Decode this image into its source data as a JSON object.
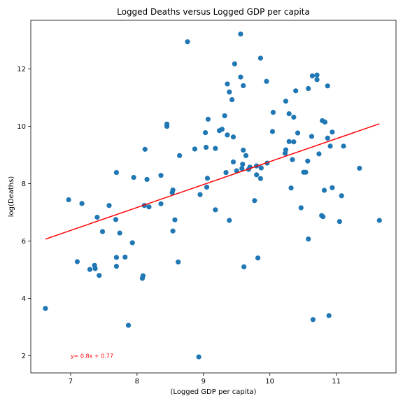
{
  "chart_data": {
    "type": "scatter",
    "title": "Logged Deaths versus Logged GDP per capita",
    "xlabel": "(Logged GDP per capita)",
    "ylabel": "log(Deaths)",
    "xlim": [
      6.4,
      11.9
    ],
    "ylim": [
      1.4,
      13.7
    ],
    "xticks": [
      "7",
      "8",
      "9",
      "10",
      "11"
    ],
    "yticks": [
      "2",
      "4",
      "6",
      "8",
      "10",
      "12"
    ],
    "grid": false,
    "colors": {
      "points": "#1f77b4",
      "fit": "#ff0000",
      "annotation": "#ff0000"
    },
    "fit": {
      "slope": 0.8,
      "intercept": 0.77,
      "x_range": [
        6.62,
        11.65
      ]
    },
    "annotation": {
      "text": "y= 0.8x + 0.77",
      "x": 7.0,
      "y": 2.0
    },
    "points": [
      [
        6.62,
        3.65
      ],
      [
        6.97,
        7.44
      ],
      [
        7.1,
        5.28
      ],
      [
        7.17,
        7.31
      ],
      [
        7.29,
        5.01
      ],
      [
        7.36,
        5.15
      ],
      [
        7.37,
        5.04
      ],
      [
        7.4,
        6.83
      ],
      [
        7.43,
        4.8
      ],
      [
        7.48,
        6.33
      ],
      [
        7.58,
        7.24
      ],
      [
        7.68,
        6.75
      ],
      [
        7.69,
        5.12
      ],
      [
        7.69,
        5.43
      ],
      [
        7.69,
        8.39
      ],
      [
        7.74,
        6.28
      ],
      [
        7.82,
        5.44
      ],
      [
        7.87,
        3.06
      ],
      [
        7.93,
        5.94
      ],
      [
        7.95,
        8.22
      ],
      [
        8.08,
        4.7
      ],
      [
        8.09,
        4.79
      ],
      [
        8.11,
        7.24
      ],
      [
        8.12,
        9.2
      ],
      [
        8.15,
        8.15
      ],
      [
        8.18,
        7.19
      ],
      [
        8.36,
        7.3
      ],
      [
        8.36,
        8.29
      ],
      [
        8.45,
        10.0
      ],
      [
        8.45,
        10.08
      ],
      [
        8.53,
        7.69
      ],
      [
        8.54,
        6.35
      ],
      [
        8.54,
        7.78
      ],
      [
        8.57,
        6.74
      ],
      [
        8.62,
        5.27
      ],
      [
        8.64,
        8.98
      ],
      [
        8.76,
        12.95
      ],
      [
        8.87,
        9.21
      ],
      [
        8.93,
        1.96
      ],
      [
        8.95,
        7.62
      ],
      [
        9.03,
        9.78
      ],
      [
        9.04,
        9.27
      ],
      [
        9.05,
        7.88
      ],
      [
        9.06,
        8.19
      ],
      [
        9.07,
        10.25
      ],
      [
        9.18,
        7.09
      ],
      [
        9.18,
        9.23
      ],
      [
        9.24,
        9.85
      ],
      [
        9.28,
        9.9
      ],
      [
        9.32,
        10.37
      ],
      [
        9.34,
        8.39
      ],
      [
        9.36,
        9.7
      ],
      [
        9.36,
        11.48
      ],
      [
        9.39,
        6.72
      ],
      [
        9.39,
        11.2
      ],
      [
        9.43,
        10.93
      ],
      [
        9.45,
        8.76
      ],
      [
        9.45,
        9.63
      ],
      [
        9.47,
        12.18
      ],
      [
        9.5,
        8.45
      ],
      [
        9.56,
        11.72
      ],
      [
        9.56,
        13.22
      ],
      [
        9.58,
        8.53
      ],
      [
        9.59,
        8.68
      ],
      [
        9.6,
        9.17
      ],
      [
        9.6,
        11.42
      ],
      [
        9.61,
        5.1
      ],
      [
        9.64,
        8.98
      ],
      [
        9.68,
        8.5
      ],
      [
        9.7,
        8.58
      ],
      [
        9.77,
        7.41
      ],
      [
        9.8,
        8.62
      ],
      [
        9.8,
        8.31
      ],
      [
        9.82,
        5.41
      ],
      [
        9.86,
        8.18
      ],
      [
        9.86,
        12.38
      ],
      [
        9.87,
        8.55
      ],
      [
        9.95,
        11.57
      ],
      [
        9.96,
        8.72
      ],
      [
        10.04,
        9.82
      ],
      [
        10.05,
        10.49
      ],
      [
        10.23,
        9.06
      ],
      [
        10.24,
        9.18
      ],
      [
        10.24,
        10.88
      ],
      [
        10.29,
        9.47
      ],
      [
        10.29,
        10.44
      ],
      [
        10.32,
        7.85
      ],
      [
        10.34,
        8.84
      ],
      [
        10.36,
        9.46
      ],
      [
        10.36,
        10.32
      ],
      [
        10.39,
        11.24
      ],
      [
        10.42,
        9.77
      ],
      [
        10.47,
        7.16
      ],
      [
        10.51,
        8.4
      ],
      [
        10.54,
        8.4
      ],
      [
        10.57,
        8.79
      ],
      [
        10.58,
        6.07
      ],
      [
        10.58,
        11.32
      ],
      [
        10.63,
        9.65
      ],
      [
        10.64,
        11.76
      ],
      [
        10.65,
        3.26
      ],
      [
        10.71,
        11.63
      ],
      [
        10.71,
        11.79
      ],
      [
        10.74,
        9.04
      ],
      [
        10.78,
        6.89
      ],
      [
        10.79,
        10.2
      ],
      [
        10.8,
        6.85
      ],
      [
        10.82,
        7.77
      ],
      [
        10.83,
        10.15
      ],
      [
        10.87,
        11.41
      ],
      [
        10.87,
        9.59
      ],
      [
        10.89,
        3.4
      ],
      [
        10.91,
        9.31
      ],
      [
        10.94,
        9.8
      ],
      [
        10.94,
        7.86
      ],
      [
        11.05,
        6.68
      ],
      [
        11.08,
        7.58
      ],
      [
        11.11,
        9.31
      ],
      [
        11.35,
        8.54
      ],
      [
        11.65,
        6.72
      ]
    ]
  }
}
